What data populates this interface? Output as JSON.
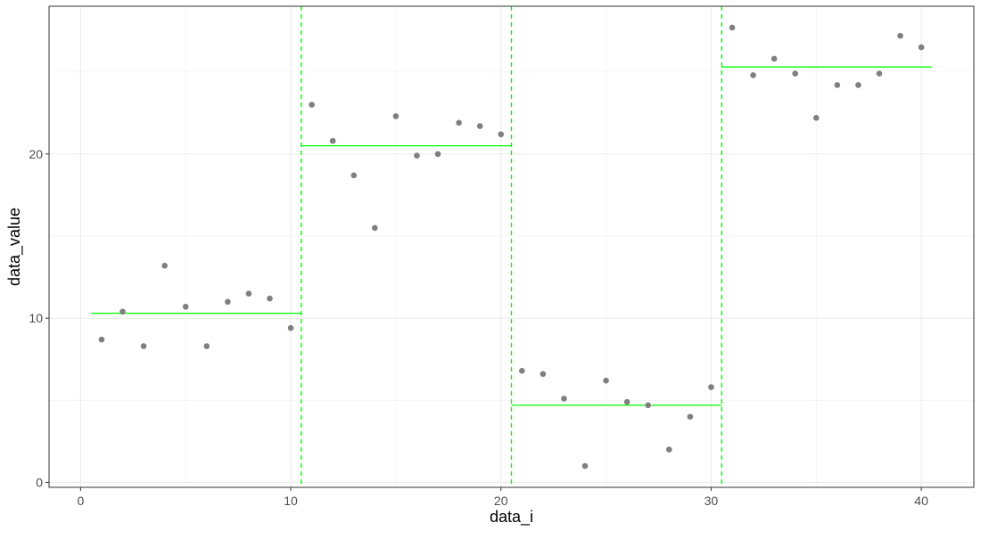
{
  "chart_data": {
    "type": "scatter",
    "title": "",
    "xlabel": "data_i",
    "ylabel": "data_value",
    "xlim": [
      -1.5,
      42.5
    ],
    "ylim": [
      -0.3,
      29.0
    ],
    "x_ticks": [
      0,
      10,
      20,
      30,
      40
    ],
    "x_tick_labels": [
      "0",
      "10",
      "20",
      "30",
      "40"
    ],
    "y_ticks": [
      0,
      10,
      20
    ],
    "y_tick_labels": [
      "0",
      "10",
      "20"
    ],
    "grid": true,
    "legend": "none",
    "colors": {
      "points": "#7f7f7f",
      "segments": "#00ff00",
      "changepoints": "#00ff00",
      "grid_major": "#ebebeb",
      "grid_minor": "#f3f3f3",
      "panel_border": "#333333",
      "tick_text": "#4d4d4d",
      "axis_title": "#000000"
    },
    "series": [
      {
        "type": "points",
        "x": [
          1,
          2,
          3,
          4,
          5,
          6,
          7,
          8,
          9,
          10,
          11,
          12,
          13,
          14,
          15,
          16,
          17,
          18,
          19,
          20,
          21,
          22,
          23,
          24,
          25,
          26,
          27,
          28,
          29,
          30,
          31,
          32,
          33,
          34,
          35,
          36,
          37,
          38,
          39,
          40
        ],
        "y": [
          8.7,
          10.4,
          8.3,
          13.2,
          10.7,
          8.3,
          11.0,
          11.5,
          11.2,
          9.4,
          23.0,
          20.8,
          18.7,
          15.5,
          22.3,
          19.9,
          20.0,
          21.9,
          21.7,
          21.2,
          6.8,
          6.6,
          5.1,
          1.0,
          6.2,
          4.9,
          4.7,
          2.0,
          4.0,
          5.8,
          27.7,
          24.8,
          25.8,
          24.9,
          22.2,
          24.2,
          24.2,
          24.9,
          27.2,
          26.5
        ]
      },
      {
        "type": "segment_means",
        "segments": [
          {
            "x_start": 0.5,
            "x_end": 10.5,
            "y": 10.3
          },
          {
            "x_start": 10.5,
            "x_end": 20.5,
            "y": 20.5
          },
          {
            "x_start": 20.5,
            "x_end": 30.5,
            "y": 4.7
          },
          {
            "x_start": 30.5,
            "x_end": 40.5,
            "y": 25.3
          }
        ]
      },
      {
        "type": "changepoints",
        "x": [
          10.5,
          20.5,
          30.5
        ]
      }
    ]
  }
}
